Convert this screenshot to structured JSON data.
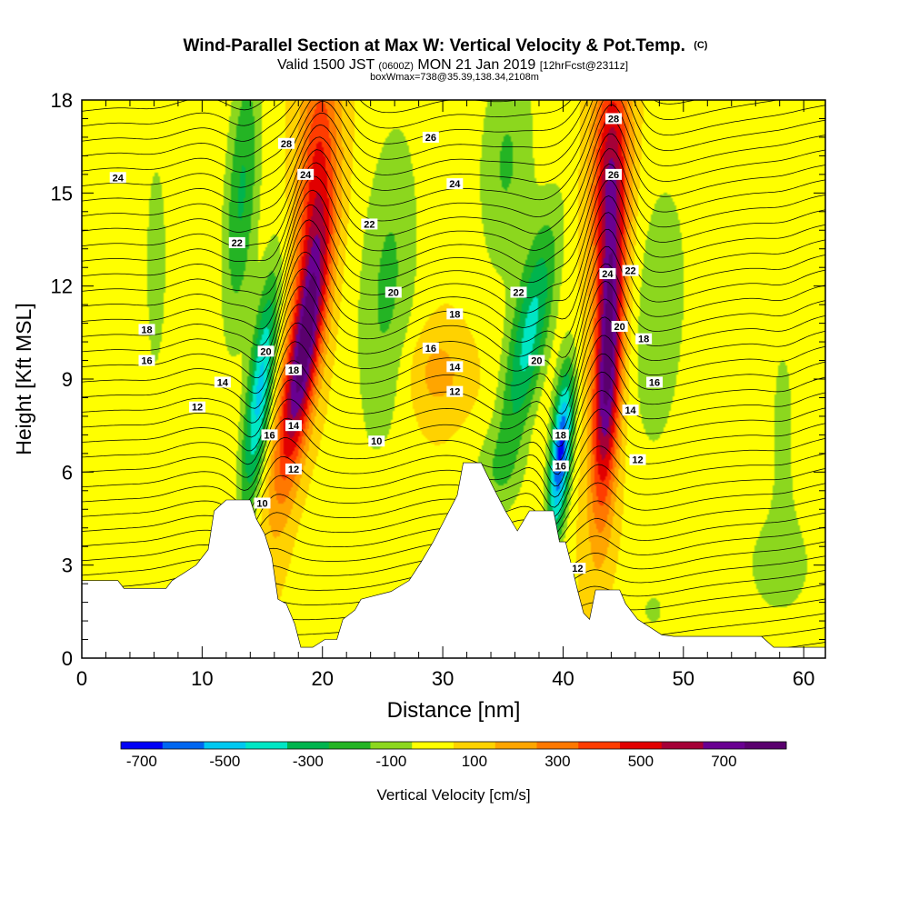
{
  "chart_data": {
    "type": "heatmap",
    "title": "Wind-Parallel Section at Max W: Vertical Velocity & Pot.Temp.",
    "title_mark": "(C)",
    "subtitle_a": "Valid 1500 JST",
    "subtitle_b": "(0600Z)",
    "subtitle_c": "MON 21 Jan 2019",
    "subtitle_d": "[12hrFcst@2311z]",
    "subtitle2": "boxWmax=738@35.39,138.34,2108m",
    "xlabel": "Distance [nm]",
    "ylabel": "Height [Kft MSL]",
    "xlim": [
      0,
      61.8
    ],
    "ylim": [
      0,
      18
    ],
    "xticks": [
      "0",
      "10",
      "20",
      "30",
      "40",
      "50",
      "60"
    ],
    "yticks": [
      "0",
      "3",
      "6",
      "9",
      "12",
      "15",
      "18"
    ],
    "colorbar": {
      "label": "Vertical Velocity [cm/s]",
      "tick_labels": [
        "-700",
        "-500",
        "-300",
        "-100",
        "100",
        "300",
        "500",
        "700"
      ],
      "bins": [
        -750,
        -650,
        -550,
        -450,
        -350,
        -250,
        -150,
        -50,
        50,
        150,
        250,
        350,
        450,
        550,
        650,
        750,
        850
      ],
      "colors": [
        "#0000f5",
        "#0066f0",
        "#00c8f0",
        "#00e6c4",
        "#00b44e",
        "#24b424",
        "#8cd71e",
        "#ffff00",
        "#ffd200",
        "#ffa500",
        "#ff7800",
        "#ff3c00",
        "#e10000",
        "#a50037",
        "#690091",
        "#5a006e"
      ]
    },
    "terrain": [
      [
        0,
        2.5
      ],
      [
        3,
        2.5
      ],
      [
        3.5,
        2.25
      ],
      [
        7,
        2.25
      ],
      [
        7.5,
        2.5
      ],
      [
        8.5,
        2.75
      ],
      [
        9.5,
        3
      ],
      [
        10.5,
        3.5
      ],
      [
        11,
        4.75
      ],
      [
        12,
        5.1
      ],
      [
        14,
        5.1
      ],
      [
        14.5,
        4.5
      ],
      [
        15.2,
        4
      ],
      [
        15.8,
        3.25
      ],
      [
        16.3,
        1.9
      ],
      [
        17,
        1.75
      ],
      [
        17.7,
        1.1
      ],
      [
        18.2,
        0.35
      ],
      [
        19.2,
        0.35
      ],
      [
        20.2,
        0.6
      ],
      [
        21.2,
        0.6
      ],
      [
        21.7,
        1.25
      ],
      [
        22.7,
        1.55
      ],
      [
        23.2,
        1.9
      ],
      [
        24.7,
        2.05
      ],
      [
        25.7,
        2.15
      ],
      [
        27.2,
        2.5
      ],
      [
        28.2,
        3.1
      ],
      [
        29.2,
        3.75
      ],
      [
        30.2,
        4.5
      ],
      [
        31.2,
        5.25
      ],
      [
        31.7,
        6.3
      ],
      [
        33.2,
        6.3
      ],
      [
        34.2,
        5.5
      ],
      [
        35.2,
        4.75
      ],
      [
        36.2,
        4.1
      ],
      [
        37.2,
        4.75
      ],
      [
        39.2,
        4.75
      ],
      [
        39.7,
        3.75
      ],
      [
        40.2,
        3.75
      ],
      [
        40.7,
        3
      ],
      [
        41.2,
        2.2
      ],
      [
        41.7,
        1.45
      ],
      [
        42.2,
        1.25
      ],
      [
        42.7,
        2.2
      ],
      [
        44.7,
        2.2
      ],
      [
        45.2,
        1.75
      ],
      [
        46.2,
        1.25
      ],
      [
        47.2,
        1
      ],
      [
        48.2,
        0.75
      ],
      [
        49.2,
        0.7
      ],
      [
        56.5,
        0.7
      ],
      [
        57.5,
        0.35
      ],
      [
        61.8,
        0.35
      ]
    ],
    "w_cells": [
      {
        "x": 18.3,
        "z": 9.6,
        "sx": 1.35,
        "sz": 4.2,
        "tilt": 0.38,
        "w": 720
      },
      {
        "x": 19.5,
        "z": 15.5,
        "sx": 1.6,
        "sz": 4.5,
        "tilt": 0.15,
        "w": 420
      },
      {
        "x": 14.8,
        "z": 8.6,
        "sx": 1.05,
        "sz": 3.9,
        "tilt": 0.28,
        "w": -520
      },
      {
        "x": 13.3,
        "z": 15.0,
        "sx": 1.4,
        "sz": 4.8,
        "tilt": 0.15,
        "w": -300
      },
      {
        "x": 43.7,
        "z": 9.2,
        "sx": 1.15,
        "sz": 4.6,
        "tilt": 0.12,
        "w": 740
      },
      {
        "x": 43.9,
        "z": 15.6,
        "sx": 1.5,
        "sz": 4.0,
        "tilt": 0.08,
        "w": 560
      },
      {
        "x": 39.8,
        "z": 6.6,
        "sx": 0.85,
        "sz": 2.7,
        "tilt": 0.2,
        "w": -720
      },
      {
        "x": 37.2,
        "z": 10.4,
        "sx": 1.6,
        "sz": 3.8,
        "tilt": 0.45,
        "w": -420
      },
      {
        "x": 35.3,
        "z": 16.0,
        "sx": 2.4,
        "sz": 4.0,
        "tilt": 0.1,
        "w": -200
      },
      {
        "x": 25.4,
        "z": 12.0,
        "sx": 2.5,
        "sz": 5.5,
        "tilt": 0.15,
        "w": -210
      },
      {
        "x": 48.0,
        "z": 11.0,
        "sx": 2.4,
        "sz": 5.0,
        "tilt": 0.12,
        "w": -170
      },
      {
        "x": 6.2,
        "z": 13.0,
        "sx": 1.6,
        "sz": 6.0,
        "tilt": 0.0,
        "w": -110
      },
      {
        "x": 58.3,
        "z": 8.0,
        "sx": 1.2,
        "sz": 3.0,
        "tilt": 0.0,
        "w": -110
      },
      {
        "x": 29.5,
        "z": 9.2,
        "sx": 2.6,
        "sz": 1.5,
        "tilt": 0.0,
        "w": 150
      },
      {
        "x": 3.0,
        "z": 6.0,
        "sx": 3.2,
        "sz": 3.8,
        "tilt": 0.0,
        "w": -70
      },
      {
        "x": 58.0,
        "z": 3.0,
        "sx": 5.0,
        "sz": 3.0,
        "tilt": 0.0,
        "w": -110
      },
      {
        "x": 47.5,
        "z": 1.5,
        "sx": 2.5,
        "sz": 1.5,
        "tilt": 0.0,
        "w": -90
      },
      {
        "x": 22.0,
        "z": 3.5,
        "sx": 3.5,
        "sz": 2.5,
        "tilt": 0.0,
        "w": -60
      },
      {
        "x": 34.5,
        "z": 6.0,
        "sx": 2.5,
        "sz": 1.5,
        "tilt": 0.0,
        "w": -120
      },
      {
        "x": 55.0,
        "z": 14.5,
        "sx": 3.0,
        "sz": 5.0,
        "tilt": 0.0,
        "w": -60
      }
    ],
    "theta_levels": [
      "10",
      "12",
      "14",
      "16",
      "18",
      "20",
      "22",
      "24",
      "26",
      "28"
    ],
    "contour_labels": [
      {
        "text": "24",
        "x": 3.0,
        "z": 15.5
      },
      {
        "text": "18",
        "x": 5.4,
        "z": 10.6
      },
      {
        "text": "16",
        "x": 5.4,
        "z": 9.6
      },
      {
        "text": "14",
        "x": 11.7,
        "z": 8.9
      },
      {
        "text": "12",
        "x": 9.6,
        "z": 8.1
      },
      {
        "text": "28",
        "x": 17.0,
        "z": 16.6
      },
      {
        "text": "24",
        "x": 18.6,
        "z": 15.6
      },
      {
        "text": "22",
        "x": 12.9,
        "z": 13.4
      },
      {
        "text": "20",
        "x": 15.3,
        "z": 9.9
      },
      {
        "text": "18",
        "x": 17.6,
        "z": 9.3
      },
      {
        "text": "16",
        "x": 15.6,
        "z": 7.2
      },
      {
        "text": "14",
        "x": 17.6,
        "z": 7.5
      },
      {
        "text": "12",
        "x": 17.6,
        "z": 6.1
      },
      {
        "text": "10",
        "x": 15.0,
        "z": 5.0
      },
      {
        "text": "26",
        "x": 29.0,
        "z": 16.8
      },
      {
        "text": "24",
        "x": 31.0,
        "z": 15.3
      },
      {
        "text": "22",
        "x": 23.9,
        "z": 14.0
      },
      {
        "text": "20",
        "x": 25.9,
        "z": 11.8
      },
      {
        "text": "18",
        "x": 31.0,
        "z": 11.1
      },
      {
        "text": "16",
        "x": 29.0,
        "z": 10.0
      },
      {
        "text": "14",
        "x": 31.0,
        "z": 9.4
      },
      {
        "text": "12",
        "x": 31.0,
        "z": 8.6
      },
      {
        "text": "10",
        "x": 24.5,
        "z": 7.0
      },
      {
        "text": "22",
        "x": 36.3,
        "z": 11.8
      },
      {
        "text": "20",
        "x": 37.8,
        "z": 9.6
      },
      {
        "text": "18",
        "x": 39.8,
        "z": 7.2
      },
      {
        "text": "16",
        "x": 39.8,
        "z": 6.2
      },
      {
        "text": "12",
        "x": 41.2,
        "z": 2.9
      },
      {
        "text": "28",
        "x": 44.2,
        "z": 17.4
      },
      {
        "text": "26",
        "x": 44.2,
        "z": 15.6
      },
      {
        "text": "24",
        "x": 43.7,
        "z": 12.4
      },
      {
        "text": "22",
        "x": 45.6,
        "z": 12.5
      },
      {
        "text": "20",
        "x": 44.7,
        "z": 10.7
      },
      {
        "text": "18",
        "x": 46.7,
        "z": 10.3
      },
      {
        "text": "16",
        "x": 47.6,
        "z": 8.9
      },
      {
        "text": "14",
        "x": 45.6,
        "z": 8.0
      },
      {
        "text": "12",
        "x": 46.2,
        "z": 6.4
      }
    ]
  }
}
